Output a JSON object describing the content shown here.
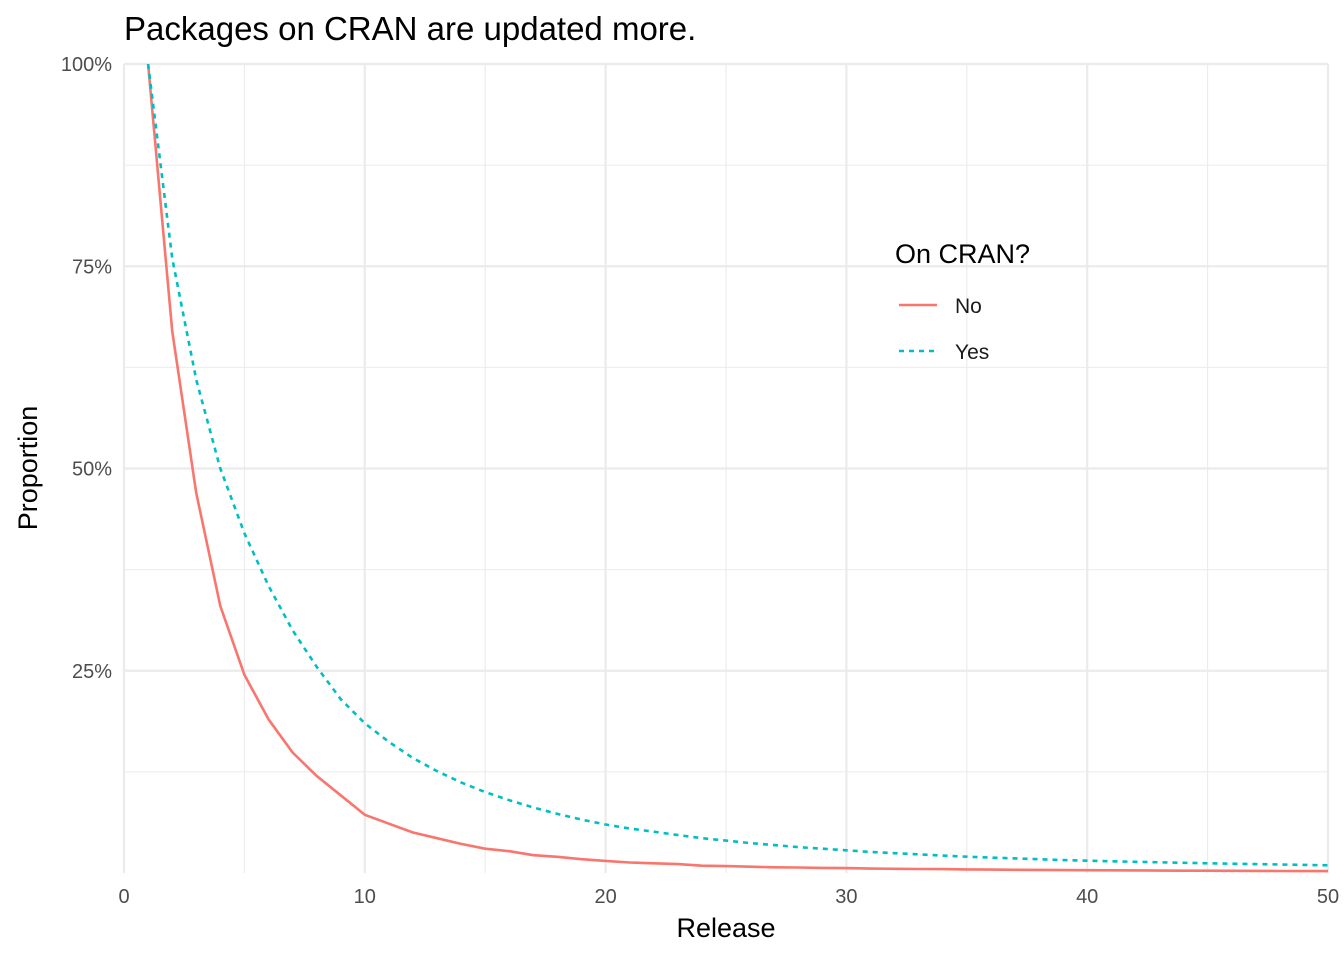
{
  "chart_data": {
    "type": "line",
    "title": "Packages on CRAN are updated more.",
    "xlabel": "Release",
    "ylabel": "Proportion",
    "xlim": [
      0,
      50
    ],
    "ylim": [
      0,
      1
    ],
    "x_ticks": [
      0,
      10,
      20,
      30,
      40,
      50
    ],
    "x_tick_labels": [
      "0",
      "10",
      "20",
      "30",
      "40",
      "50"
    ],
    "y_ticks": [
      0.25,
      0.5,
      0.75,
      1.0
    ],
    "y_tick_labels": [
      "25%",
      "50%",
      "75%",
      "100%"
    ],
    "legend": {
      "title": "On CRAN?",
      "position": "top-right"
    },
    "series": [
      {
        "name": "No",
        "color": "#F8766D",
        "linetype": "solid",
        "x": [
          1,
          2,
          3,
          4,
          5,
          6,
          7,
          8,
          9,
          10,
          11,
          12,
          13,
          14,
          15,
          16,
          17,
          18,
          19,
          20,
          21,
          22,
          23,
          24,
          25,
          26,
          27,
          28,
          29,
          30,
          31,
          32,
          33,
          34,
          35,
          36,
          37,
          38,
          39,
          40,
          41,
          42,
          43,
          44,
          45,
          46,
          47,
          48,
          49,
          50
        ],
        "values": [
          1.0,
          0.67,
          0.47,
          0.33,
          0.245,
          0.19,
          0.149,
          0.12,
          0.096,
          0.072,
          0.061,
          0.05,
          0.043,
          0.036,
          0.03,
          0.027,
          0.022,
          0.02,
          0.017,
          0.015,
          0.013,
          0.012,
          0.011,
          0.009,
          0.0085,
          0.0078,
          0.007,
          0.0068,
          0.0063,
          0.006,
          0.0055,
          0.0052,
          0.005,
          0.0048,
          0.0044,
          0.0042,
          0.004,
          0.0038,
          0.0036,
          0.0035,
          0.0033,
          0.0032,
          0.003,
          0.0029,
          0.0028,
          0.0027,
          0.0026,
          0.0025,
          0.0024,
          0.0023
        ]
      },
      {
        "name": "Yes",
        "color": "#00BFC4",
        "linetype": "dashed",
        "x": [
          1,
          2,
          3,
          4,
          5,
          6,
          7,
          8,
          9,
          10,
          11,
          12,
          13,
          14,
          15,
          16,
          17,
          18,
          19,
          20,
          21,
          22,
          23,
          24,
          25,
          26,
          27,
          28,
          29,
          30,
          31,
          32,
          33,
          34,
          35,
          36,
          37,
          38,
          39,
          40,
          41,
          42,
          43,
          44,
          45,
          46,
          47,
          48,
          49,
          50
        ],
        "values": [
          1.0,
          0.76,
          0.61,
          0.5,
          0.42,
          0.355,
          0.3,
          0.255,
          0.215,
          0.185,
          0.162,
          0.142,
          0.126,
          0.112,
          0.1,
          0.09,
          0.081,
          0.073,
          0.066,
          0.06,
          0.055,
          0.051,
          0.047,
          0.043,
          0.04,
          0.037,
          0.0345,
          0.032,
          0.03,
          0.028,
          0.026,
          0.0245,
          0.023,
          0.0215,
          0.0202,
          0.019,
          0.018,
          0.017,
          0.016,
          0.0152,
          0.0145,
          0.0138,
          0.0132,
          0.0126,
          0.012,
          0.0115,
          0.011,
          0.0105,
          0.01,
          0.0095
        ]
      }
    ]
  }
}
